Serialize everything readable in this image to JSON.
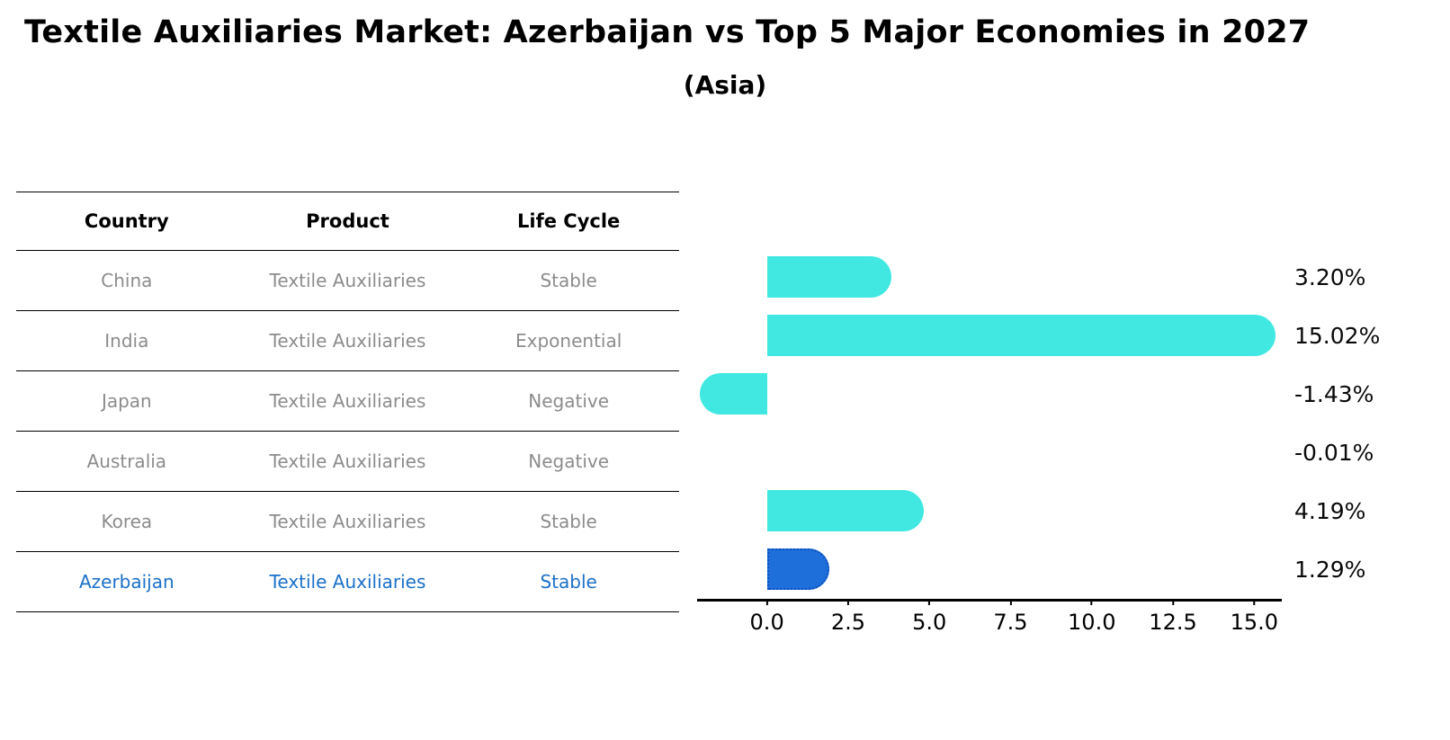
{
  "title": "Textile Auxiliaries Market: Azerbaijan vs Top 5 Major Economies in 2027",
  "subtitle": "(Asia)",
  "table": {
    "headers": [
      "Country",
      "Product",
      "Life Cycle"
    ],
    "rows": [
      {
        "country": "China",
        "product": "Textile Auxiliaries",
        "life_cycle": "Stable",
        "highlight": false
      },
      {
        "country": "India",
        "product": "Textile Auxiliaries",
        "life_cycle": "Exponential",
        "highlight": false
      },
      {
        "country": "Japan",
        "product": "Textile Auxiliaries",
        "life_cycle": "Negative",
        "highlight": false
      },
      {
        "country": "Australia",
        "product": "Textile Auxiliaries",
        "life_cycle": "Negative",
        "highlight": false
      },
      {
        "country": "Korea",
        "product": "Textile Auxiliaries",
        "life_cycle": "Stable",
        "highlight": false
      },
      {
        "country": "Azerbaijan",
        "product": "Textile Auxiliaries",
        "life_cycle": "Stable",
        "highlight": true
      }
    ]
  },
  "chart_data": {
    "type": "bar",
    "orientation": "horizontal",
    "title": "Textile Auxiliaries Market: Azerbaijan vs Top 5 Major Economies in 2027",
    "subtitle": "(Asia)",
    "categories": [
      "China",
      "India",
      "Japan",
      "Australia",
      "Korea",
      "Azerbaijan"
    ],
    "values": [
      3.2,
      15.02,
      -1.43,
      -0.01,
      4.19,
      1.29
    ],
    "labels": [
      "3.20%",
      "15.02%",
      "-1.43%",
      "-0.01%",
      "4.19%",
      "1.29%"
    ],
    "x_ticks": [
      "0.0",
      "2.5",
      "5.0",
      "7.5",
      "10.0",
      "12.5",
      "15.0"
    ],
    "x_tick_values": [
      0,
      2.5,
      5,
      7.5,
      10,
      12.5,
      15
    ],
    "xlim": [
      -2.15,
      15.85
    ],
    "grid": false,
    "legend": false,
    "highlight_index": 5,
    "colors": {
      "bar": "#40E8E1",
      "highlight_bar": "#1E6FD9",
      "highlight_border": "#0C4DC0"
    }
  },
  "colors": {
    "muted_text": "#8C8C8C",
    "highlight_text": "#1A70C8"
  }
}
